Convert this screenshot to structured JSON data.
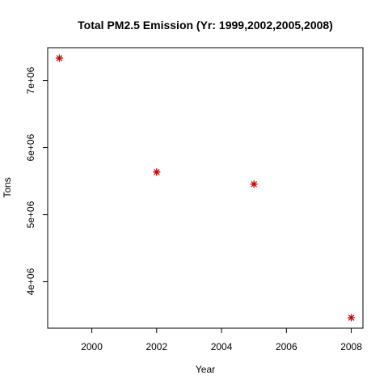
{
  "chart_data": {
    "type": "scatter",
    "title": "Total PM2.5 Emission (Yr: 1999,2002,2005,2008)",
    "xlabel": "Year",
    "ylabel": "Tons",
    "x": [
      1999,
      2002,
      2005,
      2008
    ],
    "y": [
      7332967,
      5635780,
      5454703,
      3464206
    ],
    "xlim": [
      1998.64,
      2008.36
    ],
    "ylim": [
      3308000,
      7489000
    ],
    "x_ticks": [
      2000,
      2002,
      2004,
      2006,
      2008
    ],
    "x_tick_labels": [
      "2000",
      "2002",
      "2004",
      "2006",
      "2008"
    ],
    "y_ticks": [
      4000000,
      5000000,
      6000000,
      7000000
    ],
    "y_tick_labels": [
      "4e+06",
      "5e+06",
      "6e+06",
      "7e+06"
    ],
    "grid": false,
    "marker_color": "#cc0000",
    "marker_shape": "asterisk"
  }
}
